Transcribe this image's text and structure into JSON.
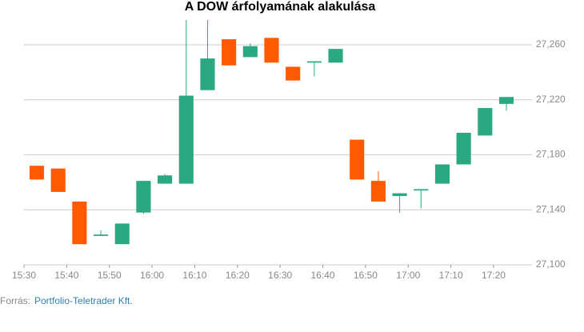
{
  "chart_data": {
    "type": "candlestick",
    "title": "A DOW árfolyamának alakulása",
    "source_label": "Forrás:",
    "source": "Portfolio-Teletrader Kft.",
    "up_color": "#2aa882",
    "down_color": "#ff5a00",
    "x": [
      933,
      938,
      943,
      948,
      953,
      958,
      963,
      968,
      973,
      978,
      983,
      988,
      993,
      998,
      1003,
      1008,
      1013,
      1018,
      1023,
      1028,
      1033,
      1038,
      1043
    ],
    "open": [
      27172,
      27170,
      27146,
      27121,
      27115,
      27138,
      27159,
      27159,
      27227,
      27264,
      27251,
      27265,
      27244,
      27247,
      27247,
      27191,
      27161,
      27150,
      27154,
      27159,
      27173,
      27194,
      27217
    ],
    "high": [
      27172,
      27170,
      27146,
      27125,
      27130,
      27161,
      27166,
      27278,
      27278,
      27264,
      27261,
      27265,
      27244,
      27248,
      27257,
      27191,
      27168,
      27152,
      27155,
      27173,
      27196,
      27214,
      27222
    ],
    "low": [
      27162,
      27153,
      27115,
      27121,
      27115,
      27137,
      27159,
      27159,
      27227,
      27245,
      27251,
      27247,
      27234,
      27237,
      27247,
      27162,
      27146,
      27138,
      27141,
      27159,
      27173,
      27194,
      27212
    ],
    "close": [
      27162,
      27153,
      27115,
      27122,
      27130,
      27161,
      27165,
      27223,
      27250,
      27245,
      27259,
      27247,
      27234,
      27248,
      27257,
      27162,
      27146,
      27152,
      27155,
      27173,
      27196,
      27214,
      27222
    ],
    "xlim": [
      930,
      1049
    ],
    "xticks": [
      {
        "value": 930,
        "label": "15:30"
      },
      {
        "value": 940,
        "label": "15:40"
      },
      {
        "value": 950,
        "label": "15:50"
      },
      {
        "value": 960,
        "label": "16:00"
      },
      {
        "value": 970,
        "label": "16:10"
      },
      {
        "value": 980,
        "label": "16:20"
      },
      {
        "value": 990,
        "label": "16:30"
      },
      {
        "value": 1000,
        "label": "16:40"
      },
      {
        "value": 1010,
        "label": "16:50"
      },
      {
        "value": 1020,
        "label": "17:00"
      },
      {
        "value": 1030,
        "label": "17:10"
      },
      {
        "value": 1040,
        "label": "17:20"
      }
    ],
    "ylim": [
      27100,
      27278
    ],
    "yticks": [
      {
        "value": 27100,
        "label": "27,100"
      },
      {
        "value": 27140,
        "label": "27,140"
      },
      {
        "value": 27180,
        "label": "27,180"
      },
      {
        "value": 27220,
        "label": "27,220"
      },
      {
        "value": 27260,
        "label": "27,260"
      }
    ],
    "grid": true
  }
}
